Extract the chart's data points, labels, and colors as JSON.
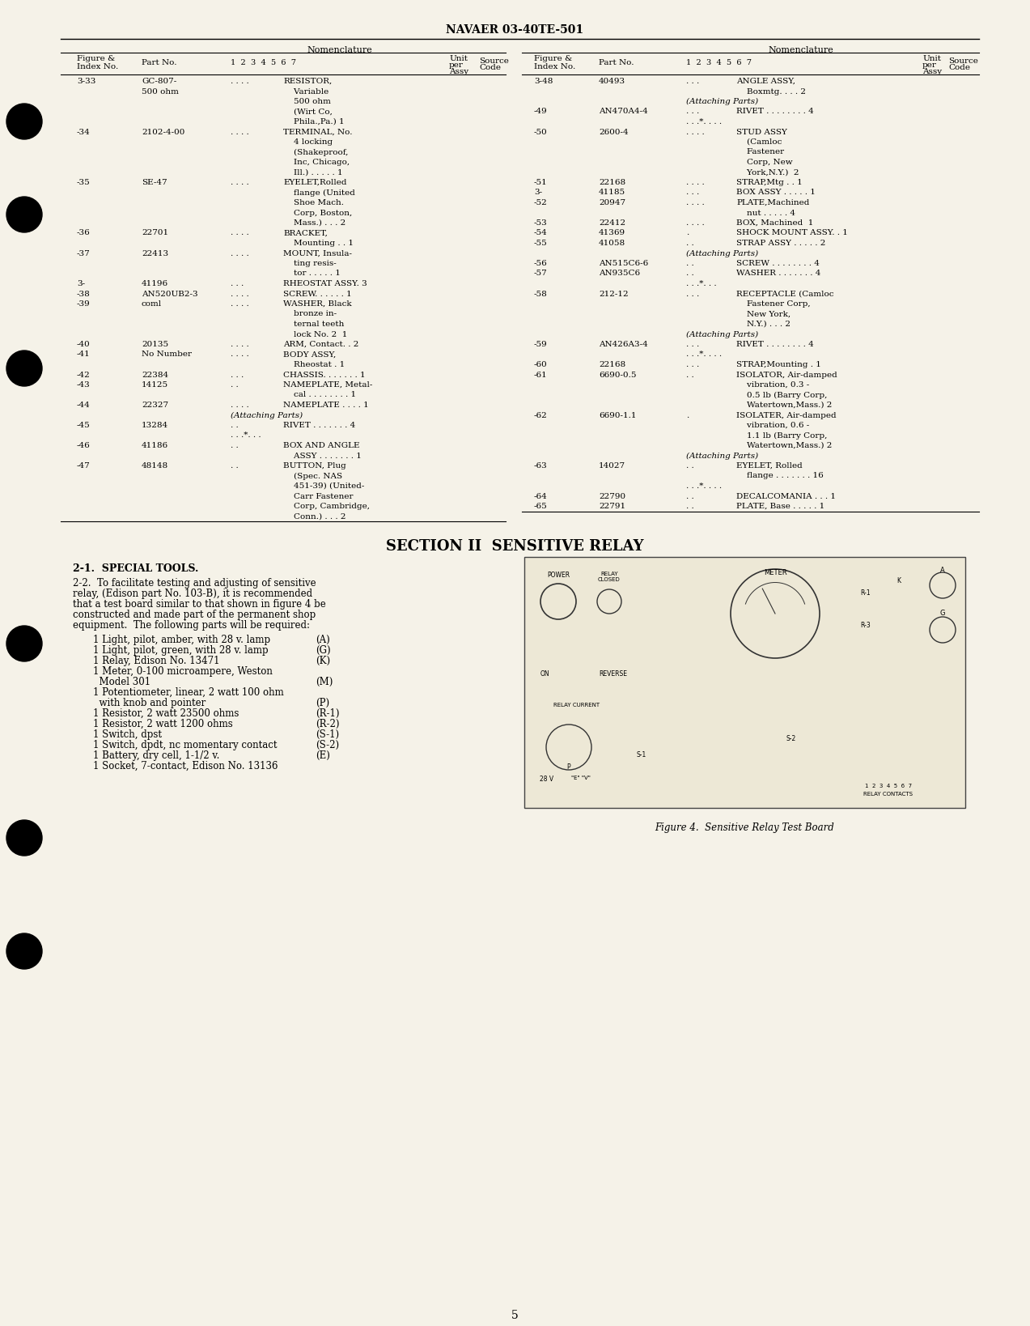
{
  "page_bg": "#f5f2e8",
  "header_title": "NAVAER 03-40TE-501",
  "page_number": "5",
  "section_title": "SECTION II  SENSITIVE RELAY",
  "special_tools_heading": "2-1.  SPECIAL TOOLS.",
  "special_tools_body": [
    "2-2.  To facilitate testing and adjusting of sensitive",
    "relay, (Edison part No. 103-B), it is recommended",
    "that a test board similar to that shown in figure 4 be",
    "constructed and made part of the permanent shop",
    "equipment.  The following parts will be required:"
  ],
  "parts_list": [
    [
      "1 Light, pilot, amber, with 28 v. lamp",
      "(A)"
    ],
    [
      "1 Light, pilot, green, with 28 v. lamp",
      "(G)"
    ],
    [
      "1 Relay, Edison No. 13471",
      "(K)"
    ],
    [
      "1 Meter, 0-100 microampere, Weston",
      ""
    ],
    [
      "  Model 301",
      "(M)"
    ],
    [
      "1 Potentiometer, linear, 2 watt 100 ohm",
      ""
    ],
    [
      "  with knob and pointer",
      "(P)"
    ],
    [
      "1 Resistor, 2 watt 23500 ohms",
      "(R-1)"
    ],
    [
      "1 Resistor, 2 watt 1200 ohms",
      "(R-2)"
    ],
    [
      "1 Switch, dpst",
      "(S-1)"
    ],
    [
      "1 Switch, dpdt, nc momentary contact",
      "(S-2)"
    ],
    [
      "1 Battery, dry cell, 1-1/2 v.",
      "(E)"
    ],
    [
      "1 Socket, 7-contact, Edison No. 13136",
      ""
    ]
  ],
  "figure_caption": "Figure 4.  Sensitive Relay Test Board",
  "left_data": [
    [
      "3-33",
      "GC-807-",
      ". . . .",
      "RESISTOR,"
    ],
    [
      "",
      "500 ohm",
      "",
      "    Variable"
    ],
    [
      "",
      "",
      "",
      "    500 ohm"
    ],
    [
      "",
      "",
      "",
      "    (Wirt Co,"
    ],
    [
      "",
      "",
      "",
      "    Phila.,Pa.) 1"
    ],
    [
      "-34",
      "2102-4-00",
      ". . . .",
      "TERMINAL, No."
    ],
    [
      "",
      "",
      "",
      "    4 locking"
    ],
    [
      "",
      "",
      "",
      "    (Shakeproof,"
    ],
    [
      "",
      "",
      "",
      "    Inc, Chicago,"
    ],
    [
      "",
      "",
      "",
      "    Ill.) . . . . . 1"
    ],
    [
      "-35",
      "SE-47",
      ". . . .",
      "EYELET,Rolled"
    ],
    [
      "",
      "",
      "",
      "    flange (United"
    ],
    [
      "",
      "",
      "",
      "    Shoe Mach."
    ],
    [
      "",
      "",
      "",
      "    Corp, Boston,"
    ],
    [
      "",
      "",
      "",
      "    Mass.) . . . 2"
    ],
    [
      "-36",
      "22701",
      ". . . .",
      "BRACKET,"
    ],
    [
      "",
      "",
      "",
      "    Mounting . . 1"
    ],
    [
      "-37",
      "22413",
      ". . . .",
      "MOUNT, Insula-"
    ],
    [
      "",
      "",
      "",
      "    ting resis-"
    ],
    [
      "",
      "",
      "",
      "    tor . . . . . 1"
    ],
    [
      "3-",
      "41196",
      ". . .",
      "RHEOSTAT ASSY. 3"
    ],
    [
      "-38",
      "AN520UB2-3",
      ". . . .",
      "SCREW. . . . . . 1"
    ],
    [
      "-39",
      "coml",
      ". . . .",
      "WASHER, Black"
    ],
    [
      "",
      "",
      "",
      "    bronze in-"
    ],
    [
      "",
      "",
      "",
      "    ternal teeth"
    ],
    [
      "",
      "",
      "",
      "    lock No. 2  1"
    ],
    [
      "-40",
      "20135",
      ". . . .",
      "ARM, Contact. . 2"
    ],
    [
      "-41",
      "No Number",
      ". . . .",
      "BODY ASSY,"
    ],
    [
      "",
      "",
      "",
      "    Rheostat . 1"
    ],
    [
      "-42",
      "22384",
      ". . .",
      "CHASSIS. . . . . . . 1"
    ],
    [
      "-43",
      "14125",
      ". .",
      "NAMEPLATE, Metal-"
    ],
    [
      "",
      "",
      "",
      "    cal . . . . . . . . 1"
    ],
    [
      "-44",
      "22327",
      ". . . .",
      "NAMEPLATE . . . . 1"
    ],
    [
      "",
      "",
      "(Attaching Parts)",
      ""
    ],
    [
      "-45",
      "13284",
      ". .",
      "RIVET . . . . . . . 4"
    ],
    [
      "",
      "",
      ". . .*. . .",
      ""
    ],
    [
      "-46",
      "41186",
      ". .",
      "BOX AND ANGLE"
    ],
    [
      "",
      "",
      "",
      "    ASSY . . . . . . . 1"
    ],
    [
      "-47",
      "48148",
      ". .",
      "BUTTON, Plug"
    ],
    [
      "",
      "",
      "",
      "    (Spec. NAS"
    ],
    [
      "",
      "",
      "",
      "    451-39) (United-"
    ],
    [
      "",
      "",
      "",
      "    Carr Fastener"
    ],
    [
      "",
      "",
      "",
      "    Corp, Cambridge,"
    ],
    [
      "",
      "",
      "",
      "    Conn.) . . . 2"
    ]
  ],
  "right_data": [
    [
      "3-48",
      "40493",
      ". . .",
      "ANGLE ASSY,"
    ],
    [
      "",
      "",
      "",
      "    Boxmtg. . . . 2"
    ],
    [
      "",
      "",
      "(Attaching Parts)",
      ""
    ],
    [
      "-49",
      "AN470A4-4",
      ". . .",
      "RIVET . . . . . . . . 4"
    ],
    [
      "",
      "",
      ". . .*. . . .",
      ""
    ],
    [
      "-50",
      "2600-4",
      ". . . .",
      "STUD ASSY"
    ],
    [
      "",
      "",
      "",
      "    (Camloc"
    ],
    [
      "",
      "",
      "",
      "    Fastener"
    ],
    [
      "",
      "",
      "",
      "    Corp, New"
    ],
    [
      "",
      "",
      "",
      "    York,N.Y.)  2"
    ],
    [
      "-51",
      "22168",
      ". . . .",
      "STRAP,Mtg . . 1"
    ],
    [
      "3-",
      "41185",
      ". . .",
      "BOX ASSY . . . . . 1"
    ],
    [
      "-52",
      "20947",
      ". . . .",
      "PLATE,Machined"
    ],
    [
      "",
      "",
      "",
      "    nut . . . . . 4"
    ],
    [
      "-53",
      "22412",
      ". . . .",
      "BOX, Machined  1"
    ],
    [
      "-54",
      "41369",
      ".",
      "SHOCK MOUNT ASSY. . 1"
    ],
    [
      "-55",
      "41058",
      ". .",
      "STRAP ASSY . . . . . 2"
    ],
    [
      "",
      "",
      "(Attaching Parts)",
      ""
    ],
    [
      "-56",
      "AN515C6-6",
      ". .",
      "SCREW . . . . . . . . 4"
    ],
    [
      "-57",
      "AN935C6",
      ". .",
      "WASHER . . . . . . . 4"
    ],
    [
      "",
      "",
      ". . .*. . .",
      ""
    ],
    [
      "-58",
      "212-12",
      ". . .",
      "RECEPTACLE (Camloc"
    ],
    [
      "",
      "",
      "",
      "    Fastener Corp,"
    ],
    [
      "",
      "",
      "",
      "    New York,"
    ],
    [
      "",
      "",
      "",
      "    N.Y.) . . . 2"
    ],
    [
      "",
      "",
      "(Attaching Parts)",
      ""
    ],
    [
      "-59",
      "AN426A3-4",
      ". . .",
      "RIVET . . . . . . . . 4"
    ],
    [
      "",
      "",
      ". . .*. . . .",
      ""
    ],
    [
      "-60",
      "22168",
      ". . .",
      "STRAP,Mounting . 1"
    ],
    [
      "-61",
      "6690-0.5",
      ". .",
      "ISOLATOR, Air-damped"
    ],
    [
      "",
      "",
      "",
      "    vibration, 0.3 -"
    ],
    [
      "",
      "",
      "",
      "    0.5 lb (Barry Corp,"
    ],
    [
      "",
      "",
      "",
      "    Watertown,Mass.) 2"
    ],
    [
      "-62",
      "6690-1.1",
      ".",
      "ISOLATER, Air-damped"
    ],
    [
      "",
      "",
      "",
      "    vibration, 0.6 -"
    ],
    [
      "",
      "",
      "",
      "    1.1 lb (Barry Corp,"
    ],
    [
      "",
      "",
      "",
      "    Watertown,Mass.) 2"
    ],
    [
      "",
      "",
      "(Attaching Parts)",
      ""
    ],
    [
      "-63",
      "14027",
      ". .",
      "EYELET, Rolled"
    ],
    [
      "",
      "",
      "",
      "    flange . . . . . . . 16"
    ],
    [
      "",
      "",
      ". . .*. . . .",
      ""
    ],
    [
      "-64",
      "22790",
      ". .",
      "DECALCOMANIA . . . 1"
    ],
    [
      "-65",
      "22791",
      ". .",
      "PLATE, Base . . . . . 1"
    ]
  ]
}
